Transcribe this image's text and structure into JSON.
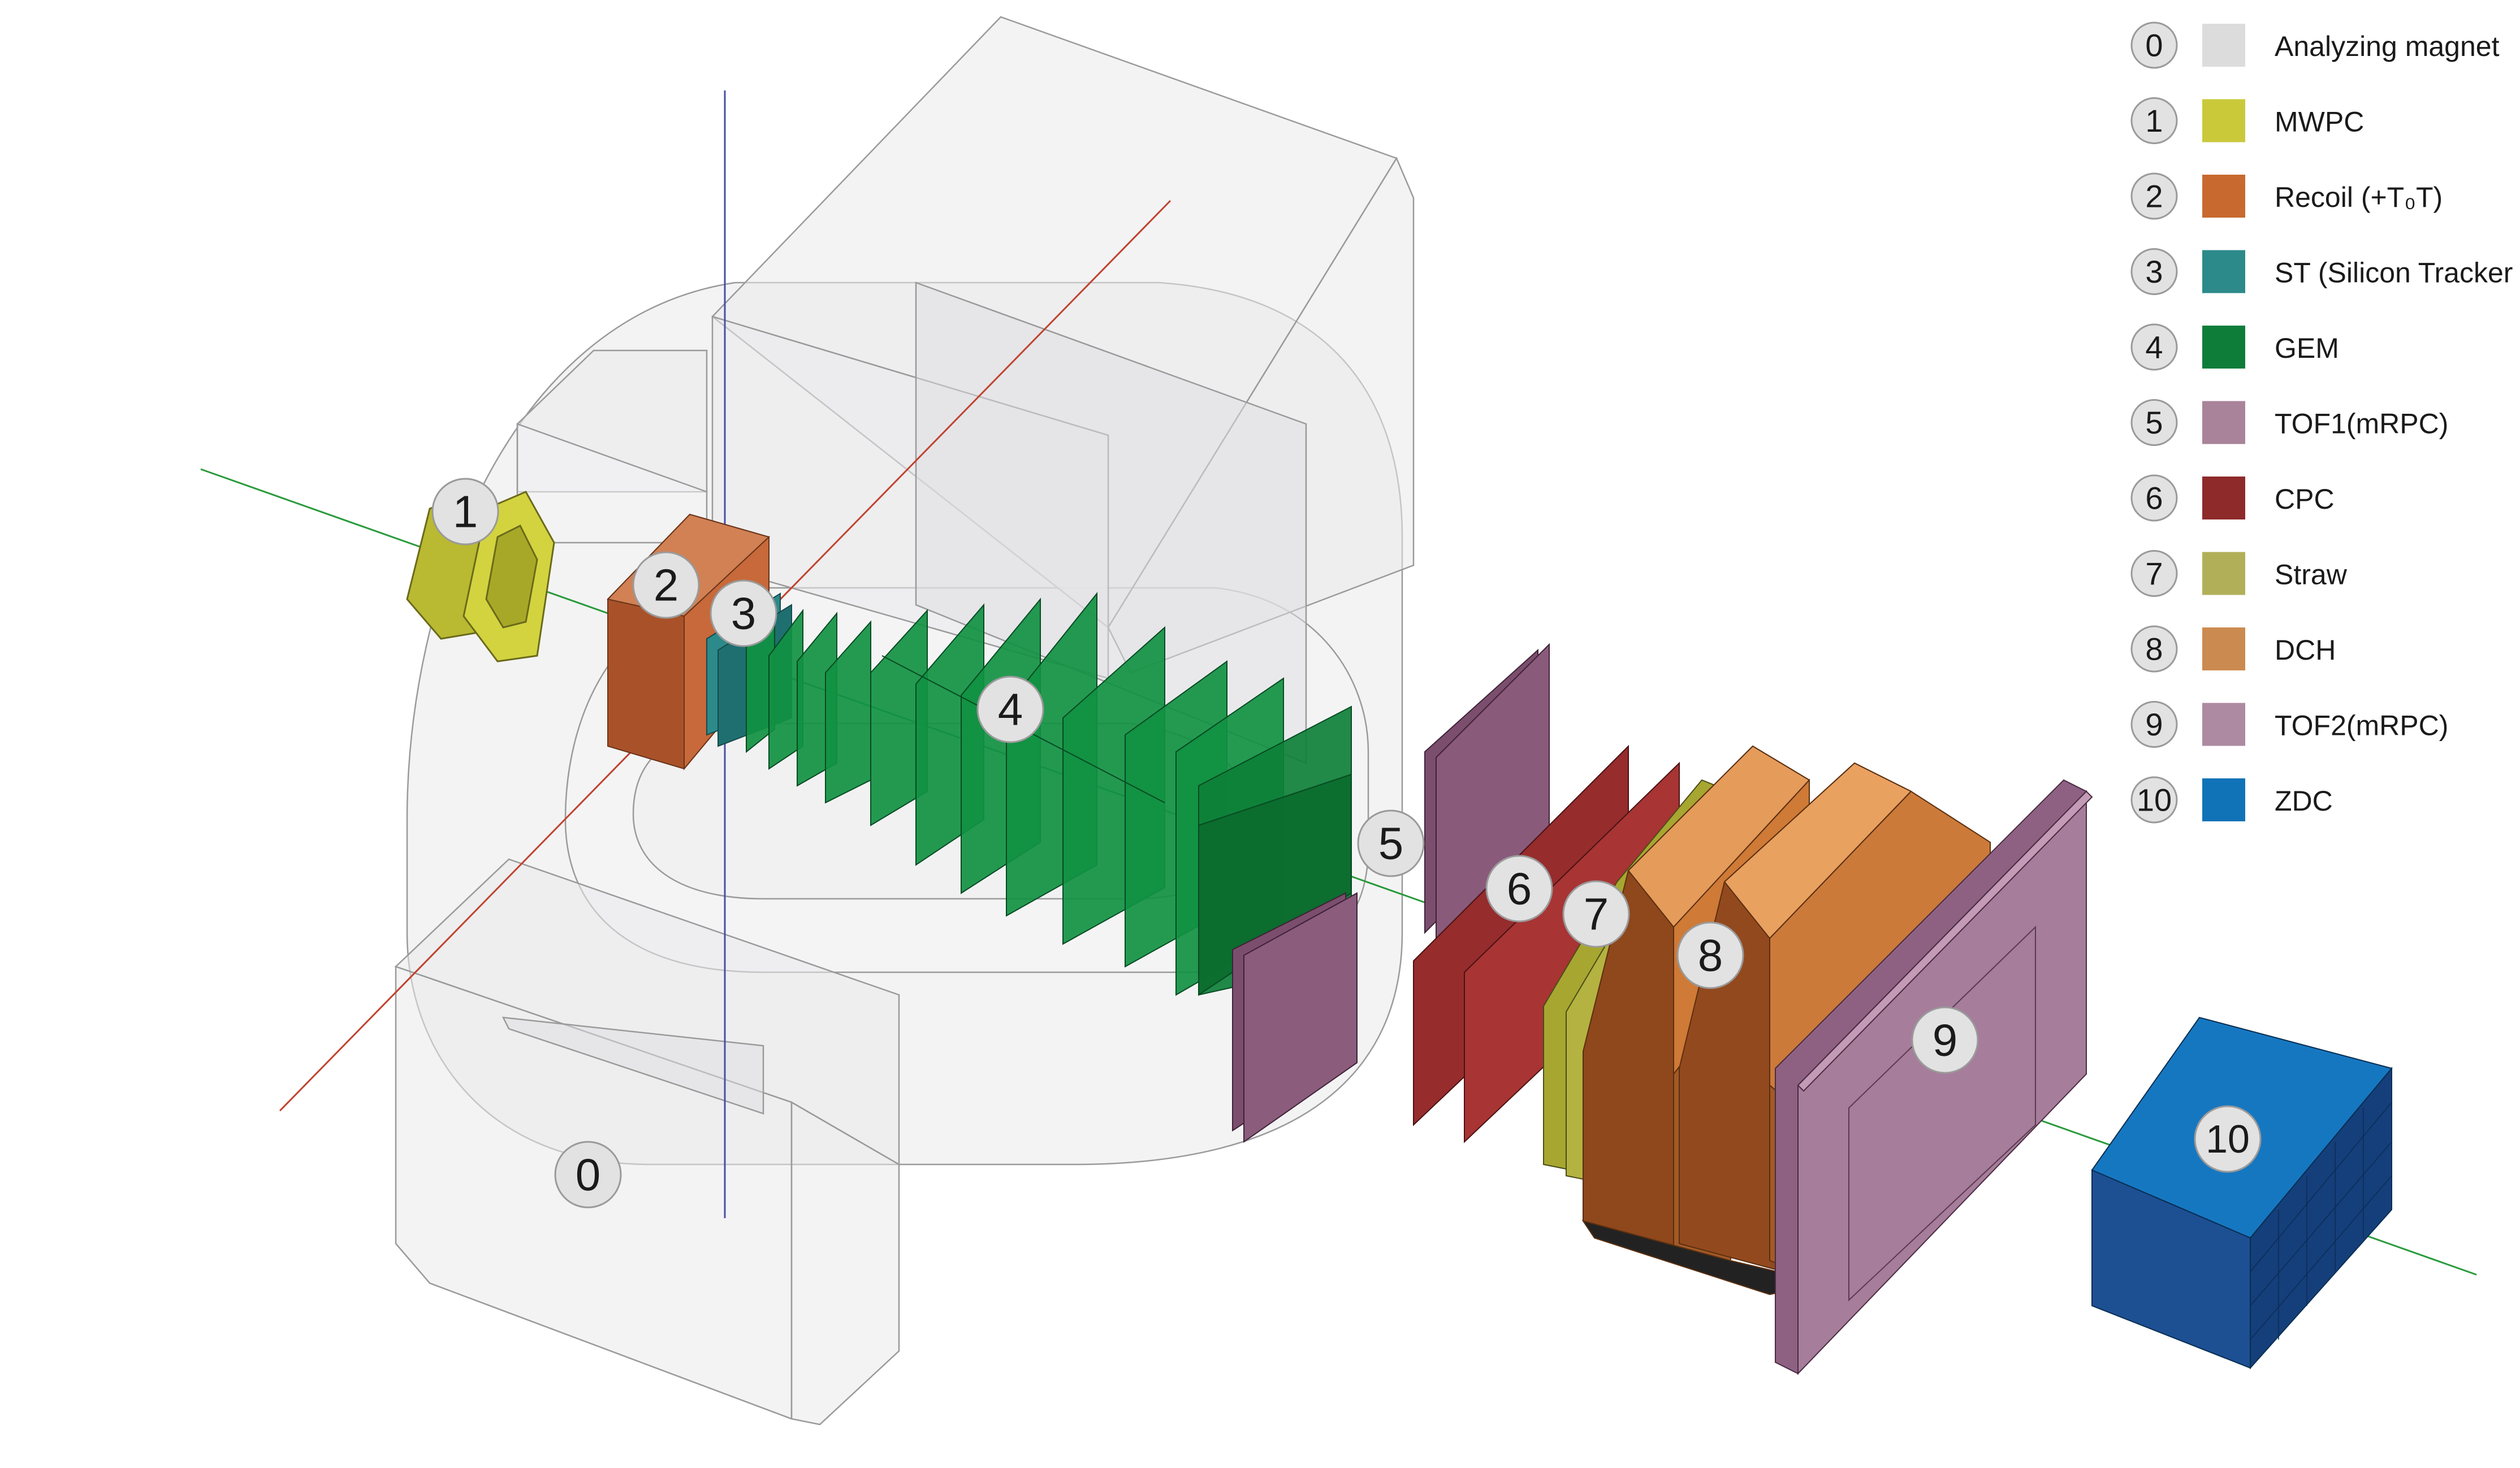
{
  "legend": [
    {
      "num": "0",
      "label": "Analyzing magnet",
      "color": "#dcdcdc"
    },
    {
      "num": "1",
      "label": "MWPC",
      "color": "#c9c93a"
    },
    {
      "num": "2",
      "label": "Recoil (+T₀T)",
      "color": "#c8692f"
    },
    {
      "num": "3",
      "label": "ST (Silicon Tracker",
      "color": "#2c8a8a"
    },
    {
      "num": "4",
      "label": "GEM",
      "color": "#0f7d3a"
    },
    {
      "num": "5",
      "label": "TOF1(mRPC)",
      "color": "#a98399"
    },
    {
      "num": "6",
      "label": "CPC",
      "color": "#8e2a2a"
    },
    {
      "num": "7",
      "label": "Straw",
      "color": "#b1b059"
    },
    {
      "num": "8",
      "label": "DCH",
      "color": "#cb8a4f"
    },
    {
      "num": "9",
      "label": "TOF2(mRPC)",
      "color": "#ad8aa2"
    },
    {
      "num": "10",
      "label": "ZDC",
      "color": "#1173b7"
    }
  ],
  "callouts": [
    "0",
    "1",
    "2",
    "3",
    "4",
    "5",
    "6",
    "7",
    "8",
    "9",
    "10"
  ]
}
